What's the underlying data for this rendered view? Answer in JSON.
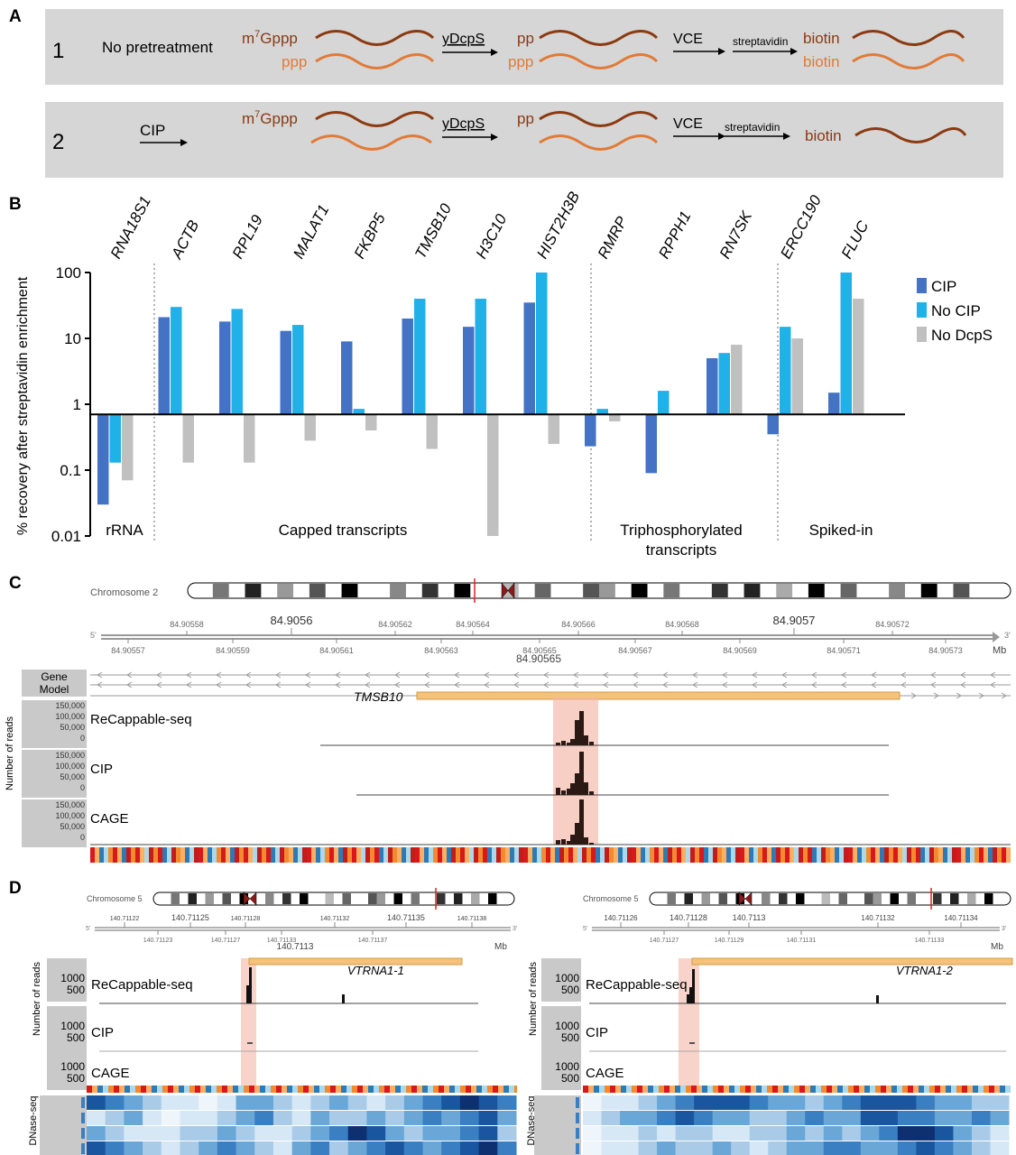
{
  "colors": {
    "cip": "#4472c4",
    "no_cip": "#1fb1e8",
    "no_dcps": "#c0c0c0",
    "rna_dark": "#8b3a12",
    "rna_light": "#e07b39",
    "panel_bg": "#d6d6d6",
    "highlight": "#f4b6a6",
    "gene_bar": "#f5c27b"
  },
  "panel_a": {
    "label": "A",
    "row1": {
      "num": "1",
      "pre": "No pretreatment",
      "cap_top": "m7Gppp",
      "cap_bottom": "ppp",
      "enzyme1": "yDcpS",
      "mid_top": "pp",
      "mid_bottom": "ppp",
      "enzyme2": "VCE",
      "enzyme3": "streptavidin",
      "end_top": "biotin",
      "end_bottom": "biotin"
    },
    "row2": {
      "num": "2",
      "pre": "CIP",
      "cap_top": "m7Gppp",
      "enzyme1": "yDcpS",
      "mid_top": "pp",
      "enzyme2": "VCE",
      "enzyme3": "streptavidin",
      "end": "biotin"
    }
  },
  "panel_b": {
    "label": "B",
    "chart_data": {
      "type": "bar",
      "y_scale": "log",
      "ylabel": "% recovery after streptavidin enrichment",
      "ylim": [
        0.01,
        100
      ],
      "yticks": [
        "100",
        "10",
        "1",
        "0.1",
        "0.01"
      ],
      "baseline": 0.7,
      "categories": [
        "RNA18S1",
        "ACTB",
        "RPL19",
        "MALAT1",
        "FKBP5",
        "TMSB10",
        "H3C10",
        "HIST2H3B",
        "RMRP",
        "RPPH1",
        "RN7SK",
        "ERCC190",
        "FLUC"
      ],
      "series": [
        {
          "name": "CIP",
          "values": [
            0.03,
            21,
            18,
            13,
            9,
            20,
            15,
            35,
            0.23,
            0.09,
            5,
            0.35,
            1.5
          ]
        },
        {
          "name": "No CIP",
          "values": [
            0.13,
            30,
            28,
            16,
            0.85,
            40,
            40,
            100,
            0.85,
            1.6,
            6,
            15,
            100
          ]
        },
        {
          "name": "No DcpS",
          "values": [
            0.07,
            0.13,
            0.13,
            0.28,
            0.4,
            0.21,
            0.01,
            0.25,
            0.55,
            null,
            8,
            10,
            40
          ]
        }
      ],
      "groups": [
        "rRNA",
        "Capped transcripts",
        "Triphosphorylated transcripts",
        "Spiked-in"
      ],
      "legend_position": "right"
    }
  },
  "panel_c": {
    "label": "C",
    "chromosome": "Chromosome 2",
    "prime5": "5'",
    "prime3": "3'",
    "unit": "Mb",
    "ticks_top": [
      "84.90558",
      "84.9056",
      "84.90562",
      "84.90564",
      "84.90566",
      "84.90568",
      "84.9057",
      "84.90572"
    ],
    "ticks_bottom": [
      "84.90557",
      "84.90559",
      "84.90561",
      "84.90563",
      "84.90565",
      "84.90567",
      "84.90569",
      "84.90571",
      "84.90573"
    ],
    "center_label": "84.90565",
    "gene_model_label": "Gene Model",
    "gene": "TMSB10",
    "yaxis_label": "Number of reads",
    "tracks": [
      {
        "name": "ReCappable-seq",
        "ticks": [
          "150,000",
          "100,000",
          "50,000",
          "0"
        ]
      },
      {
        "name": "CIP",
        "ticks": [
          "150,000",
          "100,000",
          "50,000",
          "0"
        ]
      },
      {
        "name": "CAGE",
        "ticks": [
          "150,000",
          "100,000",
          "50,000",
          "0"
        ]
      }
    ]
  },
  "panel_d": {
    "label": "D",
    "yaxis_label": "Number of reads",
    "dnase_label": "DNase-seq",
    "left": {
      "chromosome": "Chromosome 5",
      "gene": "VTRNA1-1",
      "unit": "Mb",
      "prime5": "5'",
      "prime3": "3'",
      "ticks_top": [
        "140.71122",
        "140.71125",
        "140.71128",
        "140.71132",
        "140.71135",
        "140.71138"
      ],
      "ticks_bottom": [
        "140.71123",
        "140.71127",
        "140.71133",
        "140.71137"
      ],
      "center_label": "140.7113",
      "tracks": [
        {
          "name": "ReCappable-seq",
          "ticks": [
            "1000",
            "500"
          ]
        },
        {
          "name": "CIP",
          "ticks": [
            "1000",
            "500"
          ]
        },
        {
          "name": "CAGE",
          "ticks": [
            "1000",
            "500"
          ]
        }
      ]
    },
    "right": {
      "chromosome": "Chromosome 5",
      "gene": "VTRNA1-2",
      "unit": "Mb",
      "prime5": "5'",
      "prime3": "3'",
      "ticks_top": [
        "140.71126",
        "140.71128",
        "140.7113",
        "140.71132",
        "140.71134"
      ],
      "ticks_bottom": [
        "140.71127",
        "140.71129",
        "140.71131",
        "140.71133"
      ],
      "tracks": [
        {
          "name": "ReCappable-seq",
          "ticks": [
            "1000",
            "500"
          ]
        },
        {
          "name": "CIP",
          "ticks": [
            "1000",
            "500"
          ]
        },
        {
          "name": "CAGE",
          "ticks": [
            "1000",
            "500"
          ]
        }
      ]
    }
  }
}
